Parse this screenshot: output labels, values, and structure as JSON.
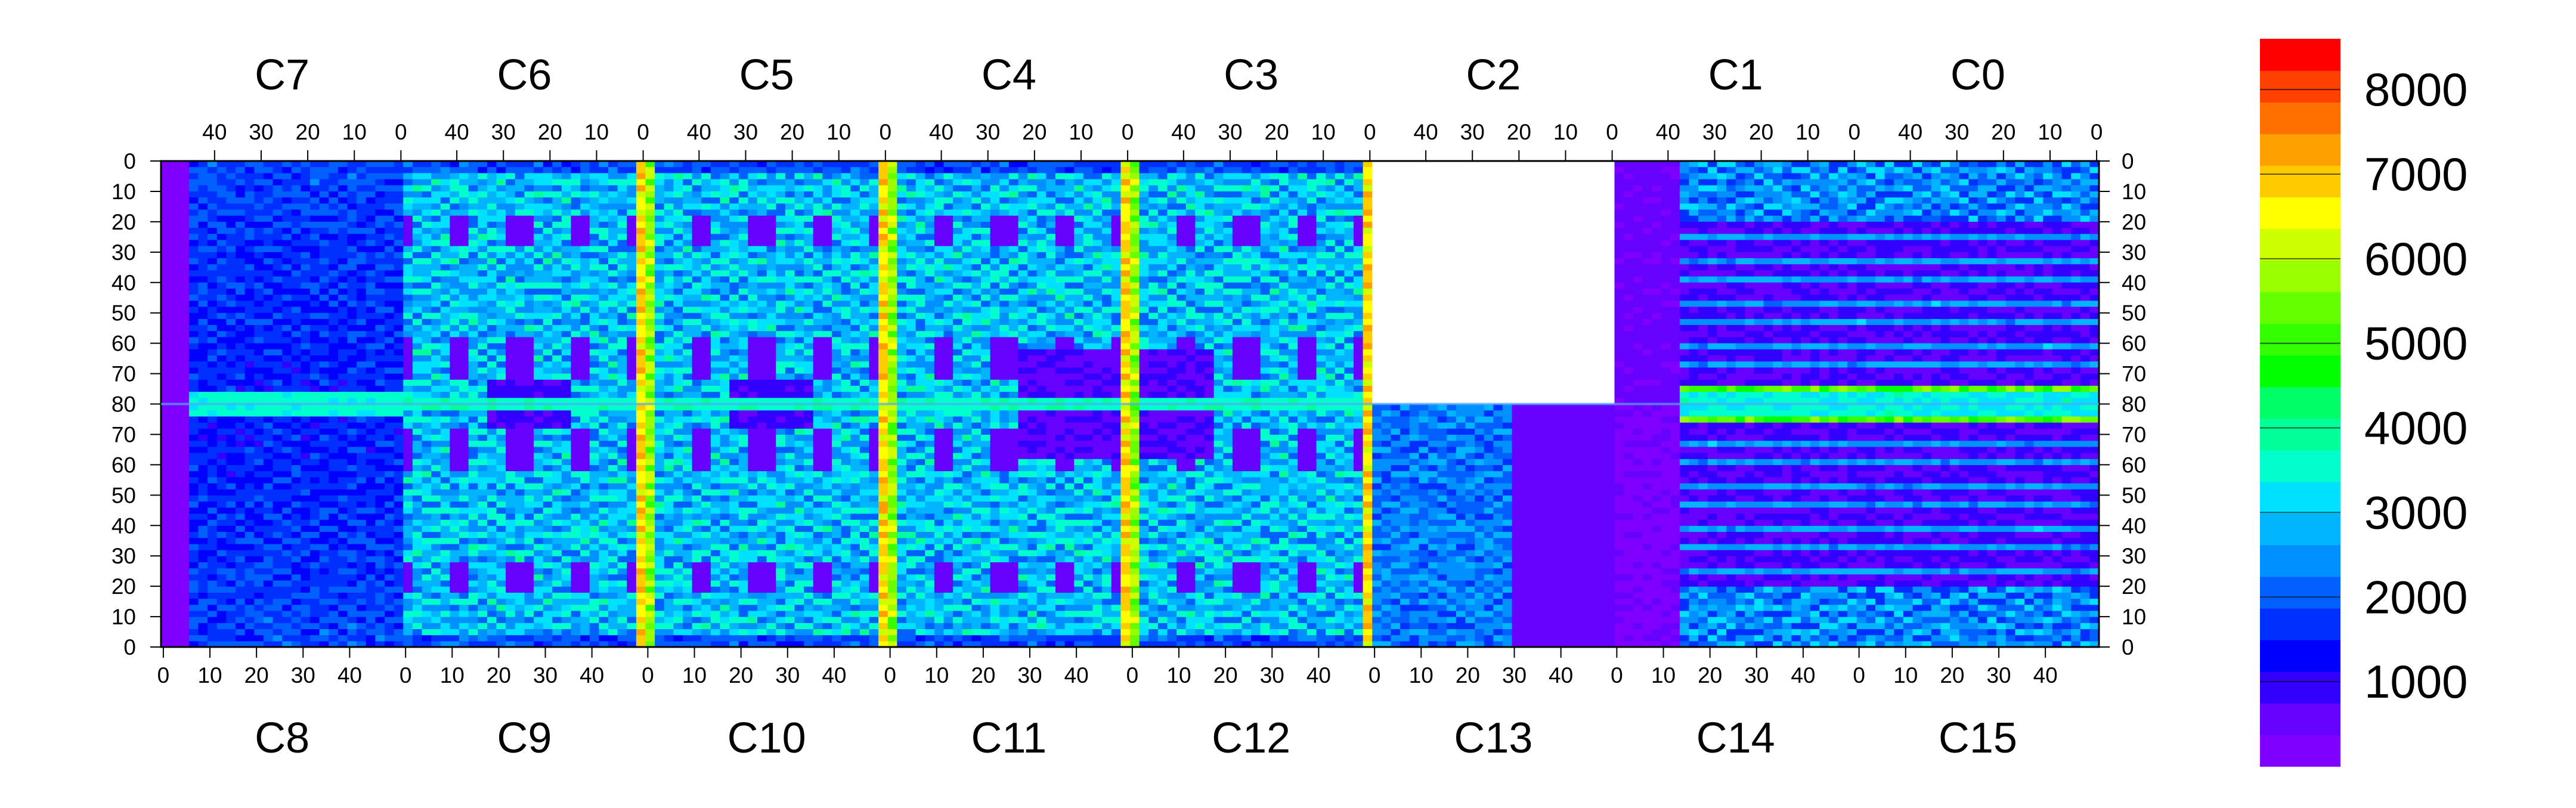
{
  "chart_data": {
    "type": "heatmap",
    "title": "",
    "xlabel": "",
    "ylabel": "",
    "top_chip_labels": [
      "C7",
      "C6",
      "C5",
      "C4",
      "C3",
      "C2",
      "C1",
      "C0"
    ],
    "bottom_chip_labels": [
      "C8",
      "C9",
      "C10",
      "C11",
      "C12",
      "C13",
      "C14",
      "C15"
    ],
    "top_x_tick_labels": [
      "40",
      "30",
      "20",
      "10",
      "0"
    ],
    "bottom_x_tick_labels": [
      "0",
      "10",
      "20",
      "30",
      "40"
    ],
    "y_tick_labels_top_half": [
      "0",
      "10",
      "20",
      "30",
      "40",
      "50",
      "60",
      "70",
      "80"
    ],
    "y_tick_labels_bottom_half": [
      "70",
      "60",
      "50",
      "40",
      "30",
      "20",
      "10",
      "0"
    ],
    "chip_columns": 52,
    "chip_rows": 80,
    "colorbar": {
      "min": 0,
      "max": 8600,
      "tick_labels": [
        "1000",
        "2000",
        "3000",
        "4000",
        "5000",
        "6000",
        "7000",
        "8000"
      ],
      "tick_values": [
        1000,
        2000,
        3000,
        4000,
        5000,
        6000,
        7000,
        8000
      ],
      "colors": [
        "#7f00ff",
        "#6600ff",
        "#3300ff",
        "#0000ff",
        "#0030ff",
        "#0060ff",
        "#0090ff",
        "#00b4ff",
        "#00e0ff",
        "#00ffcc",
        "#00ff99",
        "#00ff66",
        "#00ff00",
        "#33ff00",
        "#66ff00",
        "#99ff00",
        "#ccff00",
        "#ffff00",
        "#ffcc00",
        "#ffa000",
        "#ff7000",
        "#ff4000",
        "#ff0000"
      ]
    },
    "empty_region": "C2",
    "notable_features": [
      "Red (7000-8000) column of pixels at column 0 of C6/C9, C5/C10, C4/C11, C3/C12 and C2/C13 boundaries",
      "C2 has no data (white)",
      "C13 partially dead (right half near 0)",
      "C8 and C7 mostly low counts (blue-violet)",
      "C1, C0, C14, C15 show horizontal striping"
    ]
  }
}
